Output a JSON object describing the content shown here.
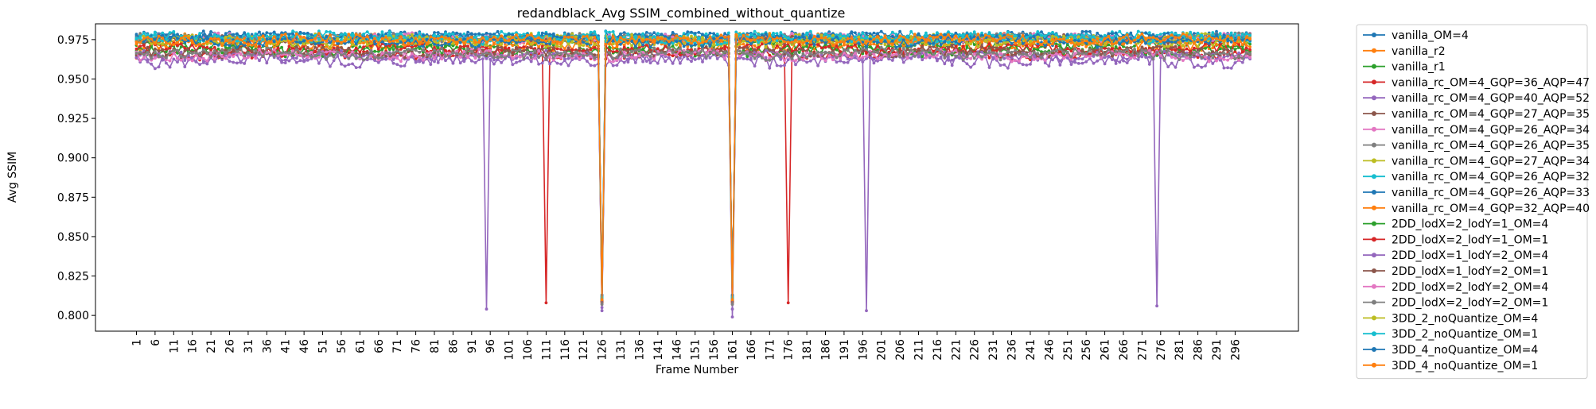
{
  "chart_data": {
    "type": "line",
    "title": "redandblack_Avg SSIM_combined_without_quantize",
    "xlabel": "Frame Number",
    "ylabel": "Avg SSIM",
    "ylim": [
      0.79,
      0.985
    ],
    "yticks": [
      0.8,
      0.825,
      0.85,
      0.875,
      0.9,
      0.925,
      0.95,
      0.975
    ],
    "x_range": [
      1,
      300
    ],
    "xticks": [
      1,
      6,
      11,
      16,
      21,
      26,
      31,
      36,
      41,
      46,
      51,
      56,
      61,
      66,
      71,
      76,
      81,
      86,
      91,
      96,
      101,
      106,
      111,
      116,
      121,
      126,
      131,
      136,
      141,
      146,
      151,
      156,
      161,
      166,
      171,
      176,
      181,
      186,
      191,
      196,
      201,
      206,
      211,
      216,
      221,
      226,
      231,
      236,
      241,
      246,
      251,
      256,
      261,
      266,
      271,
      276,
      281,
      286,
      291,
      296
    ],
    "grid": false,
    "legend_position": "outside-right",
    "series": [
      {
        "name": "vanilla_OM=4",
        "color": "#1f77b4",
        "base": 0.977,
        "amp": 0.0025,
        "seed": 1,
        "dips": [
          [
            126,
            0.812
          ],
          [
            161,
            0.812
          ]
        ]
      },
      {
        "name": "vanilla_r2",
        "color": "#ff7f0e",
        "base": 0.975,
        "amp": 0.003,
        "seed": 2,
        "dips": [
          [
            126,
            0.81
          ],
          [
            161,
            0.81
          ]
        ]
      },
      {
        "name": "vanilla_r1",
        "color": "#2ca02c",
        "base": 0.972,
        "amp": 0.003,
        "seed": 3,
        "dips": [
          [
            126,
            0.809
          ],
          [
            161,
            0.809
          ]
        ]
      },
      {
        "name": "vanilla_rc_OM=4_GQP=36_AQP=47",
        "color": "#d62728",
        "base": 0.966,
        "amp": 0.003,
        "seed": 4,
        "dips": [
          [
            111,
            0.808
          ],
          [
            126,
            0.808
          ],
          [
            161,
            0.808
          ],
          [
            176,
            0.808
          ]
        ]
      },
      {
        "name": "vanilla_rc_OM=4_GQP=40_AQP=52",
        "color": "#9467bd",
        "base": 0.962,
        "amp": 0.004,
        "seed": 5,
        "dips": [
          [
            95,
            0.804
          ],
          [
            126,
            0.803
          ],
          [
            161,
            0.799
          ],
          [
            197,
            0.803
          ],
          [
            275,
            0.806
          ]
        ]
      },
      {
        "name": "vanilla_rc_OM=4_GQP=27_AQP=35",
        "color": "#8c564b",
        "base": 0.975,
        "amp": 0.0025,
        "seed": 6,
        "dips": [
          [
            126,
            0.811
          ],
          [
            161,
            0.811
          ]
        ]
      },
      {
        "name": "vanilla_rc_OM=4_GQP=26_AQP=34",
        "color": "#e377c2",
        "base": 0.976,
        "amp": 0.0025,
        "seed": 7,
        "dips": [
          [
            126,
            0.811
          ],
          [
            161,
            0.811
          ]
        ]
      },
      {
        "name": "vanilla_rc_OM=4_GQP=26_AQP=35",
        "color": "#7f7f7f",
        "base": 0.976,
        "amp": 0.0025,
        "seed": 8,
        "dips": [
          [
            126,
            0.811
          ],
          [
            161,
            0.811
          ]
        ]
      },
      {
        "name": "vanilla_rc_OM=4_GQP=27_AQP=34",
        "color": "#bcbd22",
        "base": 0.975,
        "amp": 0.003,
        "seed": 9,
        "dips": [
          [
            126,
            0.811
          ],
          [
            161,
            0.811
          ]
        ]
      },
      {
        "name": "vanilla_rc_OM=4_GQP=26_AQP=32",
        "color": "#17becf",
        "base": 0.977,
        "amp": 0.0025,
        "seed": 10,
        "dips": [
          [
            126,
            0.812
          ],
          [
            161,
            0.812
          ]
        ]
      },
      {
        "name": "vanilla_rc_OM=4_GQP=26_AQP=33",
        "color": "#1f77b4",
        "base": 0.977,
        "amp": 0.0025,
        "seed": 11,
        "dips": [
          [
            126,
            0.813
          ],
          [
            161,
            0.813
          ]
        ]
      },
      {
        "name": "vanilla_rc_OM=4_GQP=32_AQP=40",
        "color": "#ff7f0e",
        "base": 0.972,
        "amp": 0.003,
        "seed": 12,
        "dips": [
          [
            126,
            0.81
          ],
          [
            161,
            0.81
          ]
        ]
      },
      {
        "name": "2DD_lodX=2_lodY=1_OM=4",
        "color": "#2ca02c",
        "base": 0.968,
        "amp": 0.003,
        "seed": 13,
        "dips": [
          [
            126,
            0.809
          ],
          [
            161,
            0.809
          ]
        ]
      },
      {
        "name": "2DD_lodX=2_lodY=1_OM=1",
        "color": "#d62728",
        "base": 0.969,
        "amp": 0.003,
        "seed": 14,
        "dips": [
          [
            126,
            0.809
          ],
          [
            161,
            0.809
          ]
        ]
      },
      {
        "name": "2DD_lodX=1_lodY=2_OM=4",
        "color": "#9467bd",
        "base": 0.964,
        "amp": 0.003,
        "seed": 15,
        "dips": [
          [
            126,
            0.805
          ],
          [
            161,
            0.804
          ]
        ]
      },
      {
        "name": "2DD_lodX=1_lodY=2_OM=1",
        "color": "#8c564b",
        "base": 0.967,
        "amp": 0.003,
        "seed": 16,
        "dips": [
          [
            126,
            0.808
          ],
          [
            161,
            0.808
          ]
        ]
      },
      {
        "name": "2DD_lodX=2_lodY=2_OM=4",
        "color": "#e377c2",
        "base": 0.965,
        "amp": 0.003,
        "seed": 17,
        "dips": [
          [
            126,
            0.807
          ],
          [
            161,
            0.807
          ]
        ]
      },
      {
        "name": "2DD_lodX=2_lodY=2_OM=1",
        "color": "#7f7f7f",
        "base": 0.966,
        "amp": 0.003,
        "seed": 18,
        "dips": [
          [
            126,
            0.807
          ],
          [
            161,
            0.807
          ]
        ]
      },
      {
        "name": "3DD_2_noQuantize_OM=4",
        "color": "#bcbd22",
        "base": 0.974,
        "amp": 0.003,
        "seed": 19,
        "dips": [
          [
            126,
            0.81
          ],
          [
            161,
            0.81
          ]
        ]
      },
      {
        "name": "3DD_2_noQuantize_OM=1",
        "color": "#17becf",
        "base": 0.976,
        "amp": 0.003,
        "seed": 20,
        "dips": [
          [
            126,
            0.811
          ],
          [
            161,
            0.811
          ]
        ]
      },
      {
        "name": "3DD_4_noQuantize_OM=4",
        "color": "#1f77b4",
        "base": 0.974,
        "amp": 0.003,
        "seed": 21,
        "dips": [
          [
            126,
            0.81
          ],
          [
            161,
            0.81
          ]
        ]
      },
      {
        "name": "3DD_4_noQuantize_OM=1",
        "color": "#ff7f0e",
        "base": 0.975,
        "amp": 0.003,
        "seed": 22,
        "dips": [
          [
            126,
            0.81
          ],
          [
            161,
            0.81
          ]
        ]
      }
    ]
  }
}
